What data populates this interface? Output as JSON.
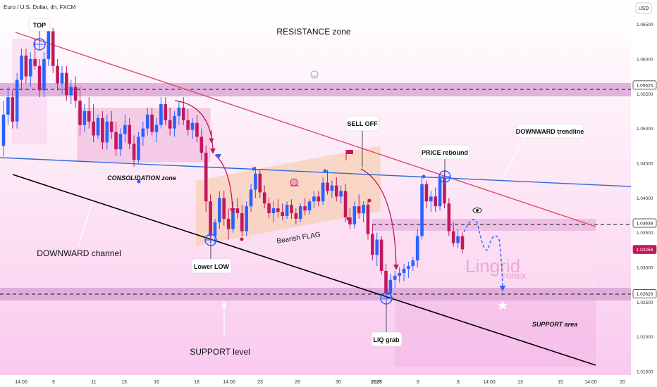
{
  "header": {
    "title": "Euro / U.S. Dollar, 4h, FXCM",
    "currency": "USD"
  },
  "watermark": {
    "brand": "Lingrid",
    "sub": "FOREX"
  },
  "colors": {
    "bull": "#2962ff",
    "bear": "#c2185b",
    "resistance_band": "#d9a3d4",
    "trendline": "#e0486e",
    "horizontal_line": "#2f6bd8",
    "channel": "#000000",
    "flag": "#f6c89f"
  },
  "chart_data": {
    "type": "candlestick",
    "y_axis": {
      "range": [
        1.0145,
        1.0685
      ],
      "ticks": [
        "1.06500",
        "1.06000",
        "1.05500",
        "1.05000",
        "1.04500",
        "1.04000",
        "1.03500",
        "1.03000",
        "1.02500",
        "1.02000",
        "1.01500"
      ]
    },
    "x_axis": {
      "ticks": [
        "14:00",
        "9",
        "11",
        "13",
        "16",
        "18",
        "14:00",
        "23",
        "26",
        "30",
        "2025",
        "6",
        "8",
        "14:00",
        "13",
        "15",
        "14:00",
        "20"
      ]
    },
    "price_badges": [
      {
        "value": "1.05625",
        "style": "white"
      },
      {
        "value": "1.03638",
        "style": "white"
      },
      {
        "value": "1.03258",
        "style": "red"
      },
      {
        "value": "1.02620",
        "style": "white"
      }
    ],
    "levels": {
      "resistance": 1.05625,
      "flag_top": 1.03638,
      "support": 1.0262
    },
    "candles": [
      [
        1.0475,
        1.054,
        1.046,
        1.052
      ],
      [
        1.052,
        1.056,
        1.0505,
        1.0545
      ],
      [
        1.0545,
        1.0555,
        1.05,
        1.051
      ],
      [
        1.051,
        1.058,
        1.05,
        1.057
      ],
      [
        1.057,
        1.0615,
        1.0555,
        1.0605
      ],
      [
        1.0605,
        1.0615,
        1.0565,
        1.0575
      ],
      [
        1.0575,
        1.061,
        1.056,
        1.06
      ],
      [
        1.06,
        1.063,
        1.0585,
        1.059
      ],
      [
        1.059,
        1.06,
        1.0545,
        1.0555
      ],
      [
        1.0555,
        1.061,
        1.0545,
        1.06
      ],
      [
        1.06,
        1.065,
        1.059,
        1.064
      ],
      [
        1.064,
        1.0645,
        1.058,
        1.059
      ],
      [
        1.059,
        1.06,
        1.0555,
        1.0565
      ],
      [
        1.0565,
        1.059,
        1.055,
        1.058
      ],
      [
        1.058,
        1.059,
        1.054,
        1.0548
      ],
      [
        1.0548,
        1.057,
        1.0535,
        1.056
      ],
      [
        1.056,
        1.0575,
        1.053,
        1.054
      ],
      [
        1.054,
        1.056,
        1.049,
        1.0505
      ],
      [
        1.0505,
        1.0535,
        1.0495,
        1.0525
      ],
      [
        1.0525,
        1.0545,
        1.05,
        1.051
      ],
      [
        1.051,
        1.0535,
        1.048,
        1.049
      ],
      [
        1.049,
        1.052,
        1.0485,
        1.0515
      ],
      [
        1.0515,
        1.0525,
        1.047,
        1.048
      ],
      [
        1.048,
        1.052,
        1.047,
        1.051
      ],
      [
        1.051,
        1.0525,
        1.0485,
        1.0495
      ],
      [
        1.0495,
        1.051,
        1.046,
        1.047
      ],
      [
        1.047,
        1.05,
        1.046,
        1.0492
      ],
      [
        1.0492,
        1.052,
        1.048,
        1.0505
      ],
      [
        1.0505,
        1.0515,
        1.047,
        1.0478
      ],
      [
        1.0478,
        1.049,
        1.0445,
        1.0455
      ],
      [
        1.0455,
        1.0495,
        1.045,
        1.0488
      ],
      [
        1.0488,
        1.051,
        1.0475,
        1.05
      ],
      [
        1.05,
        1.053,
        1.049,
        1.052
      ],
      [
        1.052,
        1.053,
        1.049,
        1.0495
      ],
      [
        1.0495,
        1.0515,
        1.048,
        1.0505
      ],
      [
        1.0505,
        1.0545,
        1.05,
        1.0535
      ],
      [
        1.0535,
        1.0545,
        1.0505,
        1.0512
      ],
      [
        1.0512,
        1.053,
        1.049,
        1.05
      ],
      [
        1.05,
        1.0525,
        1.0488,
        1.0518
      ],
      [
        1.0518,
        1.054,
        1.0505,
        1.053
      ],
      [
        1.053,
        1.0545,
        1.0505,
        1.0512
      ],
      [
        1.0512,
        1.0528,
        1.049,
        1.0498
      ],
      [
        1.0498,
        1.0515,
        1.0485,
        1.0508
      ],
      [
        1.0508,
        1.052,
        1.048,
        1.0488
      ],
      [
        1.0488,
        1.05,
        1.0455,
        1.0465
      ],
      [
        1.0465,
        1.0475,
        1.038,
        1.0395
      ],
      [
        1.0395,
        1.0405,
        1.0335,
        1.0345
      ],
      [
        1.0345,
        1.037,
        1.0335,
        1.0365
      ],
      [
        1.0365,
        1.041,
        1.0355,
        1.04
      ],
      [
        1.04,
        1.041,
        1.036,
        1.037
      ],
      [
        1.037,
        1.0385,
        1.034,
        1.0355
      ],
      [
        1.0355,
        1.0395,
        1.035,
        1.0385
      ],
      [
        1.0385,
        1.04,
        1.037,
        1.0378
      ],
      [
        1.0378,
        1.039,
        1.0345,
        1.0352
      ],
      [
        1.0352,
        1.0395,
        1.0345,
        1.0388
      ],
      [
        1.0388,
        1.042,
        1.038,
        1.0412
      ],
      [
        1.0412,
        1.0445,
        1.04,
        1.0435
      ],
      [
        1.0435,
        1.044,
        1.04,
        1.0408
      ],
      [
        1.0408,
        1.0418,
        1.0385,
        1.0392
      ],
      [
        1.0392,
        1.04,
        1.037,
        1.0378
      ],
      [
        1.0378,
        1.0395,
        1.0365,
        1.0385
      ],
      [
        1.0385,
        1.0398,
        1.0372,
        1.038
      ],
      [
        1.038,
        1.0392,
        1.0368,
        1.0374
      ],
      [
        1.0374,
        1.0395,
        1.037,
        1.039
      ],
      [
        1.039,
        1.0398,
        1.037,
        1.0378
      ],
      [
        1.0378,
        1.0385,
        1.0362,
        1.037
      ],
      [
        1.037,
        1.0392,
        1.0365,
        1.0388
      ],
      [
        1.0388,
        1.04,
        1.0375,
        1.0382
      ],
      [
        1.0382,
        1.0398,
        1.0376,
        1.0395
      ],
      [
        1.0395,
        1.041,
        1.0385,
        1.0402
      ],
      [
        1.0402,
        1.041,
        1.0388,
        1.0395
      ],
      [
        1.0395,
        1.043,
        1.039,
        1.0422
      ],
      [
        1.0422,
        1.044,
        1.0405,
        1.041
      ],
      [
        1.041,
        1.0425,
        1.04,
        1.0418
      ],
      [
        1.0418,
        1.043,
        1.0395,
        1.0402
      ],
      [
        1.0402,
        1.0418,
        1.0392,
        1.041
      ],
      [
        1.041,
        1.042,
        1.0365,
        1.0372
      ],
      [
        1.0372,
        1.0385,
        1.0355,
        1.0362
      ],
      [
        1.0362,
        1.0395,
        1.0356,
        1.0388
      ],
      [
        1.0388,
        1.0405,
        1.037,
        1.0378
      ],
      [
        1.0378,
        1.0395,
        1.0365,
        1.039
      ],
      [
        1.039,
        1.0398,
        1.034,
        1.0348
      ],
      [
        1.0348,
        1.0362,
        1.031,
        1.0318
      ],
      [
        1.0318,
        1.035,
        1.0302,
        1.034
      ],
      [
        1.034,
        1.0345,
        1.029,
        1.0295
      ],
      [
        1.0295,
        1.0305,
        1.0255,
        1.0262
      ],
      [
        1.0262,
        1.029,
        1.0255,
        1.0282
      ],
      [
        1.0282,
        1.0295,
        1.027,
        1.0288
      ],
      [
        1.0288,
        1.03,
        1.0278,
        1.0292
      ],
      [
        1.0292,
        1.0305,
        1.028,
        1.0298
      ],
      [
        1.0298,
        1.0308,
        1.0285,
        1.0302
      ],
      [
        1.0302,
        1.0315,
        1.0295,
        1.031
      ],
      [
        1.031,
        1.0355,
        1.03,
        1.0345
      ],
      [
        1.0345,
        1.043,
        1.034,
        1.042
      ],
      [
        1.042,
        1.0425,
        1.0385,
        1.0395
      ],
      [
        1.0395,
        1.041,
        1.038,
        1.0402
      ],
      [
        1.0402,
        1.0415,
        1.038,
        1.0388
      ],
      [
        1.0388,
        1.0435,
        1.0382,
        1.0428
      ],
      [
        1.0428,
        1.044,
        1.0385,
        1.0392
      ],
      [
        1.0392,
        1.04,
        1.0345,
        1.0352
      ],
      [
        1.0352,
        1.0365,
        1.033,
        1.0335
      ],
      [
        1.0335,
        1.0355,
        1.0328,
        1.0345
      ],
      [
        1.0345,
        1.035,
        1.032,
        1.0326
      ]
    ]
  },
  "annotations": {
    "top": "TOP",
    "resistance_zone": "RESISTANCE zone",
    "consolidation_zone": "CONSOLIDATION zone",
    "sell_off": "SELL OFF",
    "downward_trendline": "DOWNWARD trendline",
    "price_rebound": "PRICE rebound",
    "bearish_flag": "Bearish FLAG",
    "downward_channel": "DOWNWARD channel",
    "lower_low": "Lower LOW",
    "liq_grab": "LIQ grab",
    "support_area": "SUPPORT area",
    "support_level": "SUPPORT level"
  }
}
